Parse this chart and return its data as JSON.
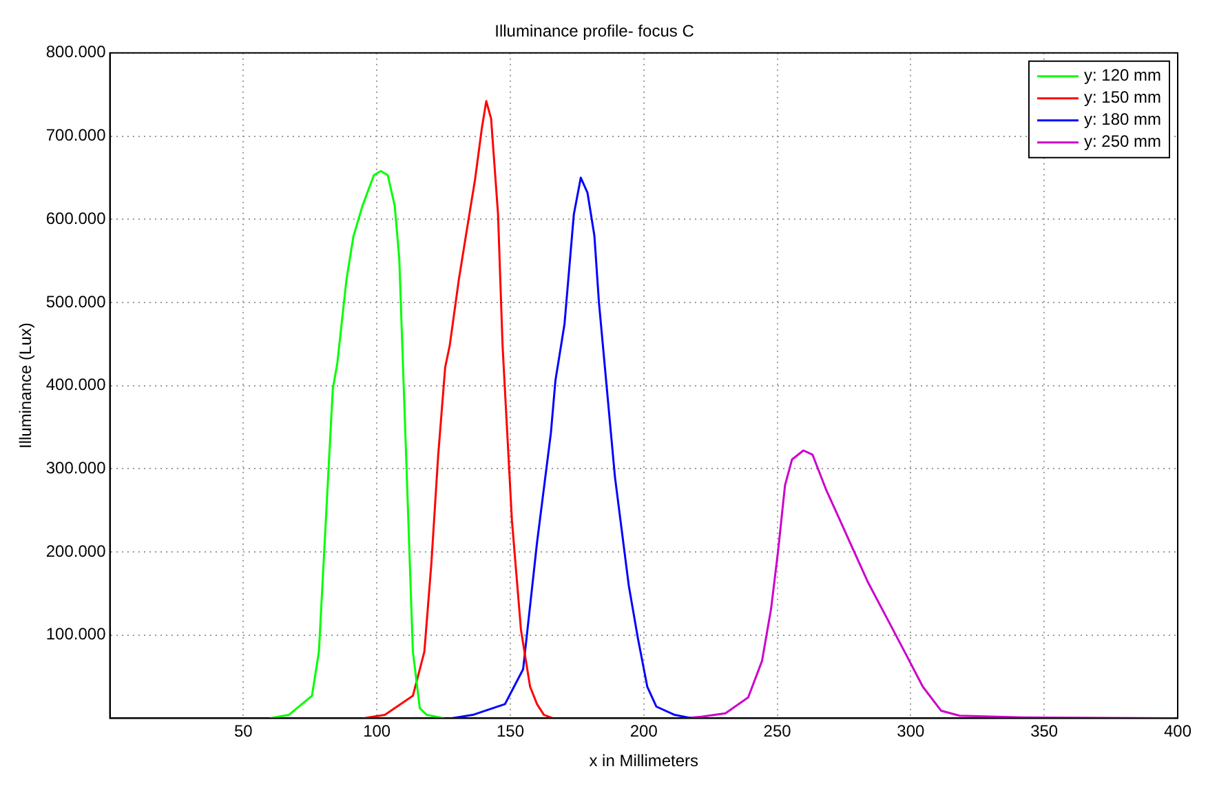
{
  "chart_data": {
    "type": "line",
    "title": "Illuminance profile- focus C",
    "xlabel": "x in Millimeters",
    "ylabel": "Illuminance (Lux)",
    "xlim": [
      0,
      400
    ],
    "xticks": [
      50,
      100,
      150,
      200,
      250,
      300,
      350,
      400
    ],
    "ylim": [
      0,
      800000
    ],
    "yticks": [
      {
        "value": 100000,
        "label": "100.000"
      },
      {
        "value": 200000,
        "label": "200.000"
      },
      {
        "value": 300000,
        "label": "300.000"
      },
      {
        "value": 400000,
        "label": "400.000"
      },
      {
        "value": 500000,
        "label": "500.000"
      },
      {
        "value": 600000,
        "label": "600.000"
      },
      {
        "value": 700000,
        "label": "700.000"
      },
      {
        "value": 800000,
        "label": "800.000"
      }
    ],
    "grid": true,
    "legend": "top right",
    "marker": "none",
    "line_style": "solid",
    "series": [
      {
        "name": "y: 120 mm",
        "color": "#00ff00",
        "x": [
          60,
          67,
          75.7,
          78.3,
          80.9,
          83.5,
          85.2,
          88.6,
          91.2,
          94.6,
          98.9,
          101.5,
          104.1,
          106.7,
          108.4,
          110.1,
          111.8,
          113.5,
          116.1,
          118.7,
          125
        ],
        "values": [
          0,
          4000,
          27000,
          80000,
          238000,
          396000,
          427000,
          527000,
          579000,
          616000,
          653000,
          658000,
          653000,
          616000,
          553000,
          396000,
          238000,
          80000,
          12000,
          4000,
          0
        ]
      },
      {
        "name": "y: 150 mm",
        "color": "#ff0000",
        "x": [
          95,
          103,
          113.5,
          117.8,
          120.4,
          123,
          125.6,
          127.3,
          130.7,
          133.3,
          136.8,
          139.4,
          141,
          142.8,
          145.4,
          147.1,
          150.6,
          154,
          157.4,
          160,
          162.6,
          166
        ],
        "values": [
          0,
          4000,
          27000,
          80000,
          185000,
          317000,
          422000,
          448000,
          527000,
          579000,
          648000,
          711000,
          742000,
          721000,
          606000,
          448000,
          238000,
          106000,
          38000,
          17000,
          4000,
          0
        ]
      },
      {
        "name": "y: 180 mm",
        "color": "#0000ff",
        "x": [
          128,
          135.9,
          148,
          154.8,
          160,
          165.2,
          166.9,
          170.3,
          173.8,
          176.4,
          178.9,
          181.5,
          183.2,
          189.2,
          194.4,
          197.8,
          201.3,
          204.7,
          211.6,
          218
        ],
        "values": [
          0,
          4000,
          17000,
          59000,
          211000,
          343000,
          406000,
          474000,
          606000,
          650000,
          632000,
          580000,
          500000,
          290000,
          159000,
          96000,
          38000,
          14000,
          4000,
          0
        ]
      },
      {
        "name": "y: 250 mm",
        "color": "#cc00cc",
        "x": [
          215,
          222,
          230.6,
          239.1,
          244.3,
          247.7,
          250.3,
          252.9,
          255.5,
          259.8,
          263.2,
          268.4,
          273.5,
          278.7,
          283.9,
          290.8,
          297.7,
          304.5,
          311.4,
          318.3,
          342,
          399
        ],
        "values": [
          0,
          2000,
          6000,
          25000,
          69000,
          132000,
          201000,
          280000,
          311000,
          322000,
          317000,
          274000,
          238000,
          201000,
          164000,
          122000,
          80000,
          38000,
          9000,
          3000,
          1000,
          0
        ]
      }
    ]
  }
}
